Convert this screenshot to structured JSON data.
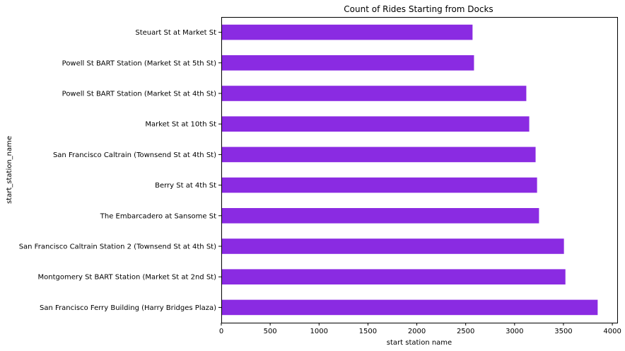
{
  "chart_data": {
    "type": "bar",
    "orientation": "horizontal",
    "title": "Count of Rides Starting from Docks",
    "xlabel": "start station name",
    "ylabel": "start_station_name",
    "categories": [
      "Steuart St at Market St",
      "Powell St BART Station (Market St at 5th St)",
      "Powell St BART Station (Market St at 4th St)",
      "Market St at 10th St",
      "San Francisco Caltrain (Townsend St at 4th St)",
      "Berry St at 4th St",
      "The Embarcadero at Sansome St",
      "San Francisco Caltrain Station 2  (Townsend St at 4th St)",
      "Montgomery St BART Station (Market St at 2nd St)",
      "San Francisco Ferry Building (Harry Bridges Plaza)"
    ],
    "values": [
      2570,
      2585,
      3120,
      3150,
      3215,
      3230,
      3250,
      3505,
      3520,
      3850
    ],
    "xlim": [
      0,
      4050
    ],
    "xticks": [
      0,
      500,
      1000,
      1500,
      2000,
      2500,
      3000,
      3500,
      4000
    ],
    "bar_color": "#8a2be2",
    "grid": false,
    "legend": "none"
  }
}
